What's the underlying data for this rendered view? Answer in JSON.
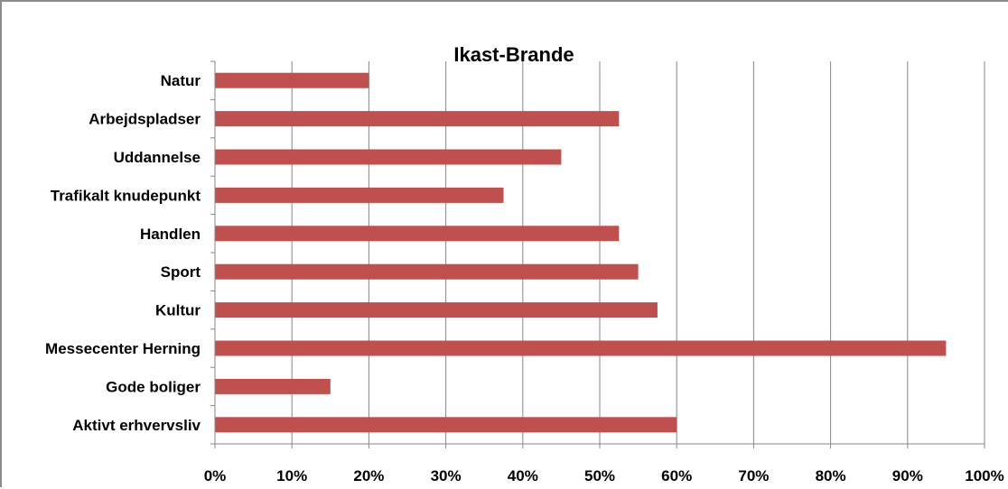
{
  "chart_data": {
    "type": "bar",
    "orientation": "horizontal",
    "title": "Ikast-Brande",
    "xlabel": "",
    "ylabel": "",
    "categories": [
      "Natur",
      "Arbejdspladser",
      "Uddannelse",
      "Trafikalt knudepunkt",
      "Handlen",
      "Sport",
      "Kultur",
      "Messecenter Herning",
      "Gode boliger",
      "Aktivt erhvervsliv"
    ],
    "values": [
      0.2,
      0.525,
      0.45,
      0.375,
      0.525,
      0.55,
      0.575,
      0.95,
      0.15,
      0.6
    ],
    "xlim": [
      0,
      1
    ],
    "x_ticks": [
      0,
      0.1,
      0.2,
      0.3,
      0.4,
      0.5,
      0.6,
      0.7,
      0.8,
      0.9,
      1.0
    ],
    "x_tick_labels": [
      "0%",
      "10%",
      "20%",
      "30%",
      "40%",
      "50%",
      "60%",
      "70%",
      "80%",
      "90%",
      "100%"
    ],
    "grid": "vertical",
    "legend": "none",
    "colors": {
      "bar": "#c0504d",
      "grid": "#868686",
      "axis": "#868686",
      "frame": "#8c8c8c"
    }
  }
}
